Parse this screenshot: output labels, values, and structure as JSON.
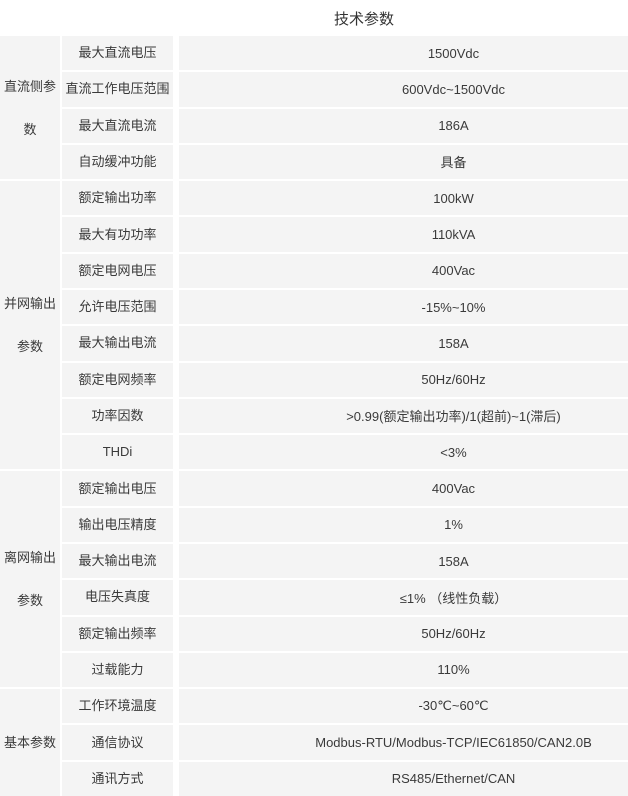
{
  "table": {
    "title": "技术参数",
    "groups": [
      {
        "label": "直流侧参数",
        "rows": [
          {
            "name": "最大直流电压",
            "value": "1500Vdc"
          },
          {
            "name": "直流工作电压范围",
            "value": "600Vdc~1500Vdc"
          },
          {
            "name": "最大直流电流",
            "value": "186A"
          },
          {
            "name": "自动缓冲功能",
            "value": "具备"
          }
        ]
      },
      {
        "label": "并网输出参数",
        "rows": [
          {
            "name": "额定输出功率",
            "value": "100kW"
          },
          {
            "name": "最大有功功率",
            "value": "110kVA"
          },
          {
            "name": "额定电网电压",
            "value": "400Vac"
          },
          {
            "name": "允许电压范围",
            "value": "-15%~10%"
          },
          {
            "name": "最大输出电流",
            "value": "158A"
          },
          {
            "name": "额定电网频率",
            "value": "50Hz/60Hz"
          },
          {
            "name": "功率因数",
            "value": ">0.99(额定输出功率)/1(超前)~1(滞后)"
          },
          {
            "name": "THDi",
            "value": "<3%"
          }
        ]
      },
      {
        "label": "离网输出参数",
        "rows": [
          {
            "name": "额定输出电压",
            "value": "400Vac"
          },
          {
            "name": "输出电压精度",
            "value": "1%"
          },
          {
            "name": "最大输出电流",
            "value": "158A"
          },
          {
            "name": "电压失真度",
            "value": "≤1% （线性负载）"
          },
          {
            "name": "额定输出频率",
            "value": "50Hz/60Hz"
          },
          {
            "name": "过载能力",
            "value": "110%"
          }
        ]
      },
      {
        "label": "基本参数",
        "rows": [
          {
            "name": "工作环境温度",
            "value": "-30℃~60℃"
          },
          {
            "name": "通信协议",
            "value": "Modbus-RTU/Modbus-TCP/IEC61850/CAN2.0B"
          },
          {
            "name": "通讯方式",
            "value": "RS485/Ethernet/CAN"
          }
        ]
      }
    ]
  },
  "colors": {
    "row_background": "#f4f4f4",
    "separator": "#ffffff",
    "text": "#3a3a3a",
    "title_text": "#333333"
  }
}
